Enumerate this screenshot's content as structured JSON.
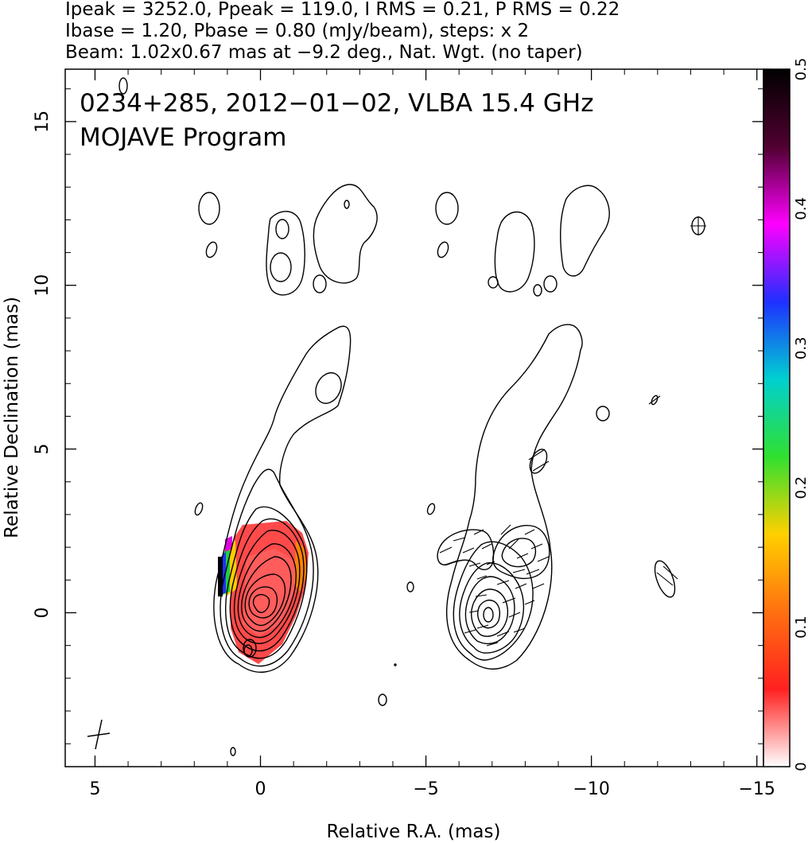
{
  "header": {
    "line1": "Ipeak = 3252.0, Ppeak = 119.0, I RMS = 0.21, P RMS = 0.22",
    "line2": "Ibase = 1.20, Pbase = 0.80 (mJy/beam), steps: x 2",
    "line3": "Beam: 1.02x0.67 mas at −9.2 deg., Nat. Wgt. (no taper)"
  },
  "panel": {
    "source_label": "0234+285, 2012−01−02, VLBA 15.4 GHz",
    "program_label": "MOJAVE Program"
  },
  "chart_data": {
    "type": "heatmap",
    "title": "0234+285, 2012−01−02, VLBA 15.4 GHz",
    "subtitle": "MOJAVE Program",
    "xlabel": "Relative R.A. (mas)",
    "ylabel": "Relative Declination (mas)",
    "xlim": [
      5.9,
      -15.2
    ],
    "ylim": [
      -4.7,
      16.6
    ],
    "x_ticks": [
      5,
      0,
      -5,
      -10,
      -15
    ],
    "x_tick_labels": [
      "5",
      "0",
      "−5",
      "−10",
      "−15"
    ],
    "y_ticks": [
      0,
      5,
      10,
      15
    ],
    "y_tick_labels": [
      "0",
      "5",
      "10",
      "15"
    ],
    "colorbar": {
      "min": 0,
      "max": 0.5,
      "ticks": [
        0,
        0.1,
        0.2,
        0.3,
        0.4,
        0.5
      ],
      "tick_labels": [
        "0",
        "0.1",
        "0.2",
        "0.3",
        "0.4",
        "0.5"
      ],
      "colors": [
        "#ffffff",
        "#ff2020",
        "#ff7010",
        "#ffd000",
        "#30e030",
        "#00d0d0",
        "#1f30ff",
        "#ff00ff",
        "#500030",
        "#000000"
      ]
    },
    "peak_position": [
      0,
      0
    ],
    "grid": false
  }
}
